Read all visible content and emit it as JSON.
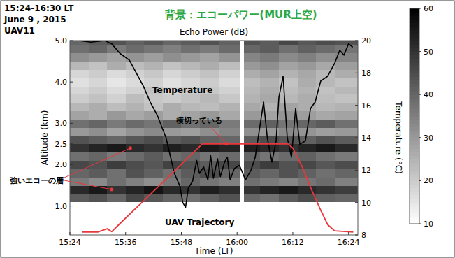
{
  "chart_data": {
    "type": "line",
    "header": [
      "15:24-16:30 LT",
      "June 9 , 2015",
      "UAV11"
    ],
    "title": "背景：エコーパワー(MUR上空)",
    "subtitle": "Echo Power (dB)",
    "x_label": "Time (LT)",
    "y_label": "Altitude (km)",
    "y2_label": "Temperature (°C)",
    "xlim": [
      924,
      986
    ],
    "xticks": [
      {
        "value": 924,
        "label": "15:24"
      },
      {
        "value": 936,
        "label": "15:36"
      },
      {
        "value": 948,
        "label": "15:48"
      },
      {
        "value": 960,
        "label": "16:00"
      },
      {
        "value": 972,
        "label": "16:12"
      },
      {
        "value": 984,
        "label": "16:24"
      }
    ],
    "ylim": [
      0.3,
      5.0
    ],
    "yticks": [
      {
        "value": 1,
        "label": "1.0"
      },
      {
        "value": 2,
        "label": "2.0"
      },
      {
        "value": 2.5,
        "label": "2.5"
      },
      {
        "value": 3,
        "label": "3.0"
      },
      {
        "value": 4,
        "label": "4.0"
      },
      {
        "value": 5,
        "label": "5.0"
      }
    ],
    "y2lim": [
      8,
      20
    ],
    "y2ticks": [
      8,
      10,
      12,
      14,
      16,
      18,
      20
    ],
    "grid": false,
    "series": [
      {
        "name": "Temperature",
        "color": "#000000",
        "axis": "y2",
        "x": [
          926.0,
          928.5,
          931.5,
          933.0,
          934.8,
          936.8,
          938.3,
          939.8,
          941.3,
          942.8,
          944.7,
          946.5,
          947.7,
          948.3,
          948.9,
          949.5,
          950.4,
          951.3,
          951.9,
          952.8,
          953.7,
          954.3,
          954.9,
          955.8,
          956.4,
          957.3,
          957.9,
          958.5,
          959.4,
          960.5,
          961.8,
          963.0,
          963.9,
          964.8,
          965.7,
          966.5,
          967.5,
          968.4,
          969.0,
          969.9,
          970.8,
          971.7,
          972.6,
          973.5,
          974.7,
          975.8,
          976.8,
          978.0,
          979.5,
          981.0,
          982.1,
          983.0,
          984.0,
          984.9
        ],
        "values": [
          20.0,
          19.9,
          20.0,
          19.8,
          19.2,
          18.8,
          18.0,
          17.2,
          16.2,
          15.4,
          14.0,
          11.8,
          11.0,
          10.0,
          9.7,
          10.9,
          11.3,
          12.6,
          11.8,
          12.2,
          11.4,
          12.9,
          11.5,
          12.7,
          11.6,
          12.5,
          12.8,
          11.4,
          12.1,
          12.3,
          11.4,
          12.0,
          12.8,
          14.5,
          16.2,
          14.0,
          12.5,
          13.8,
          16.5,
          17.8,
          14.0,
          12.8,
          15.8,
          13.6,
          13.8,
          15.8,
          16.2,
          17.5,
          17.8,
          18.6,
          19.4,
          19.1,
          19.8,
          19.6
        ]
      },
      {
        "name": "UAV Trajectory",
        "color": "#e8383d",
        "x": [
          926.7,
          930,
          932,
          933,
          935,
          940,
          945,
          950,
          952.5,
          960,
          971,
          972,
          974,
          976,
          978,
          979.5,
          981,
          985
        ],
        "values": [
          0.37,
          0.37,
          0.45,
          0.38,
          0.6,
          1.14,
          1.68,
          2.23,
          2.5,
          2.5,
          2.5,
          2.4,
          1.95,
          1.4,
          0.9,
          0.55,
          0.4,
          0.37
        ]
      }
    ],
    "annotations": [
      {
        "text": "強いエコーの層",
        "points": [
          [
            937,
            2.4
          ],
          [
            933,
            1.4
          ]
        ]
      },
      {
        "text": "横切っている",
        "points": [
          [
            957.7,
            2.5
          ]
        ]
      }
    ],
    "echo_power": {
      "x_edges": [
        924,
        928,
        932,
        936,
        940,
        944,
        948,
        952,
        956,
        960.5,
        961.5,
        965,
        969,
        973,
        977,
        981,
        986
      ],
      "y_edges": [
        1.1,
        1.3,
        1.5,
        1.7,
        1.9,
        2.1,
        2.3,
        2.5,
        2.7,
        2.9,
        3.1,
        3.3,
        3.5,
        3.7,
        3.9,
        4.1,
        4.3,
        4.5,
        4.7,
        4.9,
        5.0
      ],
      "values": [
        [
          42,
          44,
          40,
          46,
          43,
          40,
          38,
          41,
          44,
          null,
          40,
          38,
          42,
          45,
          41,
          40
        ],
        [
          52,
          55,
          50,
          53,
          56,
          52,
          50,
          54,
          51,
          null,
          50,
          53,
          55,
          52,
          50,
          48
        ],
        [
          36,
          33,
          38,
          35,
          32,
          36,
          40,
          37,
          35,
          null,
          38,
          36,
          34,
          37,
          39,
          35
        ],
        [
          40,
          42,
          38,
          44,
          41,
          38,
          42,
          45,
          40,
          null,
          42,
          40,
          44,
          41,
          38,
          40
        ],
        [
          46,
          44,
          48,
          45,
          43,
          47,
          44,
          42,
          46,
          null,
          45,
          48,
          44,
          46,
          43,
          45
        ],
        [
          38,
          40,
          36,
          39,
          42,
          38,
          40,
          37,
          39,
          null,
          40,
          37,
          39,
          41,
          38,
          36
        ],
        [
          50,
          53,
          55,
          52,
          50,
          54,
          52,
          55,
          53,
          null,
          54,
          52,
          50,
          53,
          55,
          52
        ],
        [
          44,
          42,
          40,
          43,
          45,
          42,
          44,
          41,
          40,
          null,
          42,
          45,
          43,
          41,
          44,
          42
        ],
        [
          30,
          32,
          28,
          31,
          33,
          30,
          29,
          32,
          34,
          null,
          32,
          30,
          33,
          31,
          29,
          30
        ],
        [
          38,
          40,
          36,
          39,
          37,
          41,
          38,
          40,
          36,
          null,
          39,
          41,
          37,
          40,
          42,
          38
        ],
        [
          28,
          26,
          30,
          27,
          29,
          26,
          28,
          30,
          27,
          null,
          30,
          28,
          31,
          29,
          27,
          28
        ],
        [
          24,
          26,
          23,
          25,
          22,
          26,
          24,
          23,
          25,
          null,
          27,
          25,
          28,
          26,
          24,
          25
        ],
        [
          20,
          22,
          19,
          23,
          21,
          20,
          22,
          24,
          21,
          null,
          25,
          27,
          24,
          26,
          23,
          22
        ],
        [
          18,
          20,
          17,
          19,
          22,
          18,
          20,
          21,
          19,
          null,
          24,
          26,
          23,
          25,
          22,
          24
        ],
        [
          16,
          18,
          15,
          17,
          19,
          16,
          18,
          20,
          17,
          null,
          23,
          25,
          22,
          26,
          24,
          22
        ],
        [
          18,
          20,
          17,
          19,
          21,
          18,
          20,
          22,
          19,
          null,
          26,
          28,
          25,
          27,
          24,
          26
        ],
        [
          24,
          22,
          26,
          23,
          25,
          22,
          24,
          26,
          23,
          null,
          30,
          32,
          28,
          30,
          27,
          29
        ],
        [
          32,
          30,
          28,
          31,
          29,
          32,
          30,
          28,
          31,
          null,
          34,
          36,
          33,
          35,
          32,
          34
        ],
        [
          38,
          40,
          36,
          39,
          37,
          35,
          38,
          36,
          39,
          null,
          40,
          42,
          38,
          41,
          39,
          37
        ],
        [
          40,
          42,
          44,
          41,
          43,
          40,
          42,
          44,
          41,
          null,
          44,
          42,
          46,
          43,
          45,
          44
        ]
      ],
      "colorbar_range": [
        10,
        60
      ],
      "colorbar_ticks": [
        10,
        20,
        30,
        40,
        50,
        60
      ]
    }
  }
}
